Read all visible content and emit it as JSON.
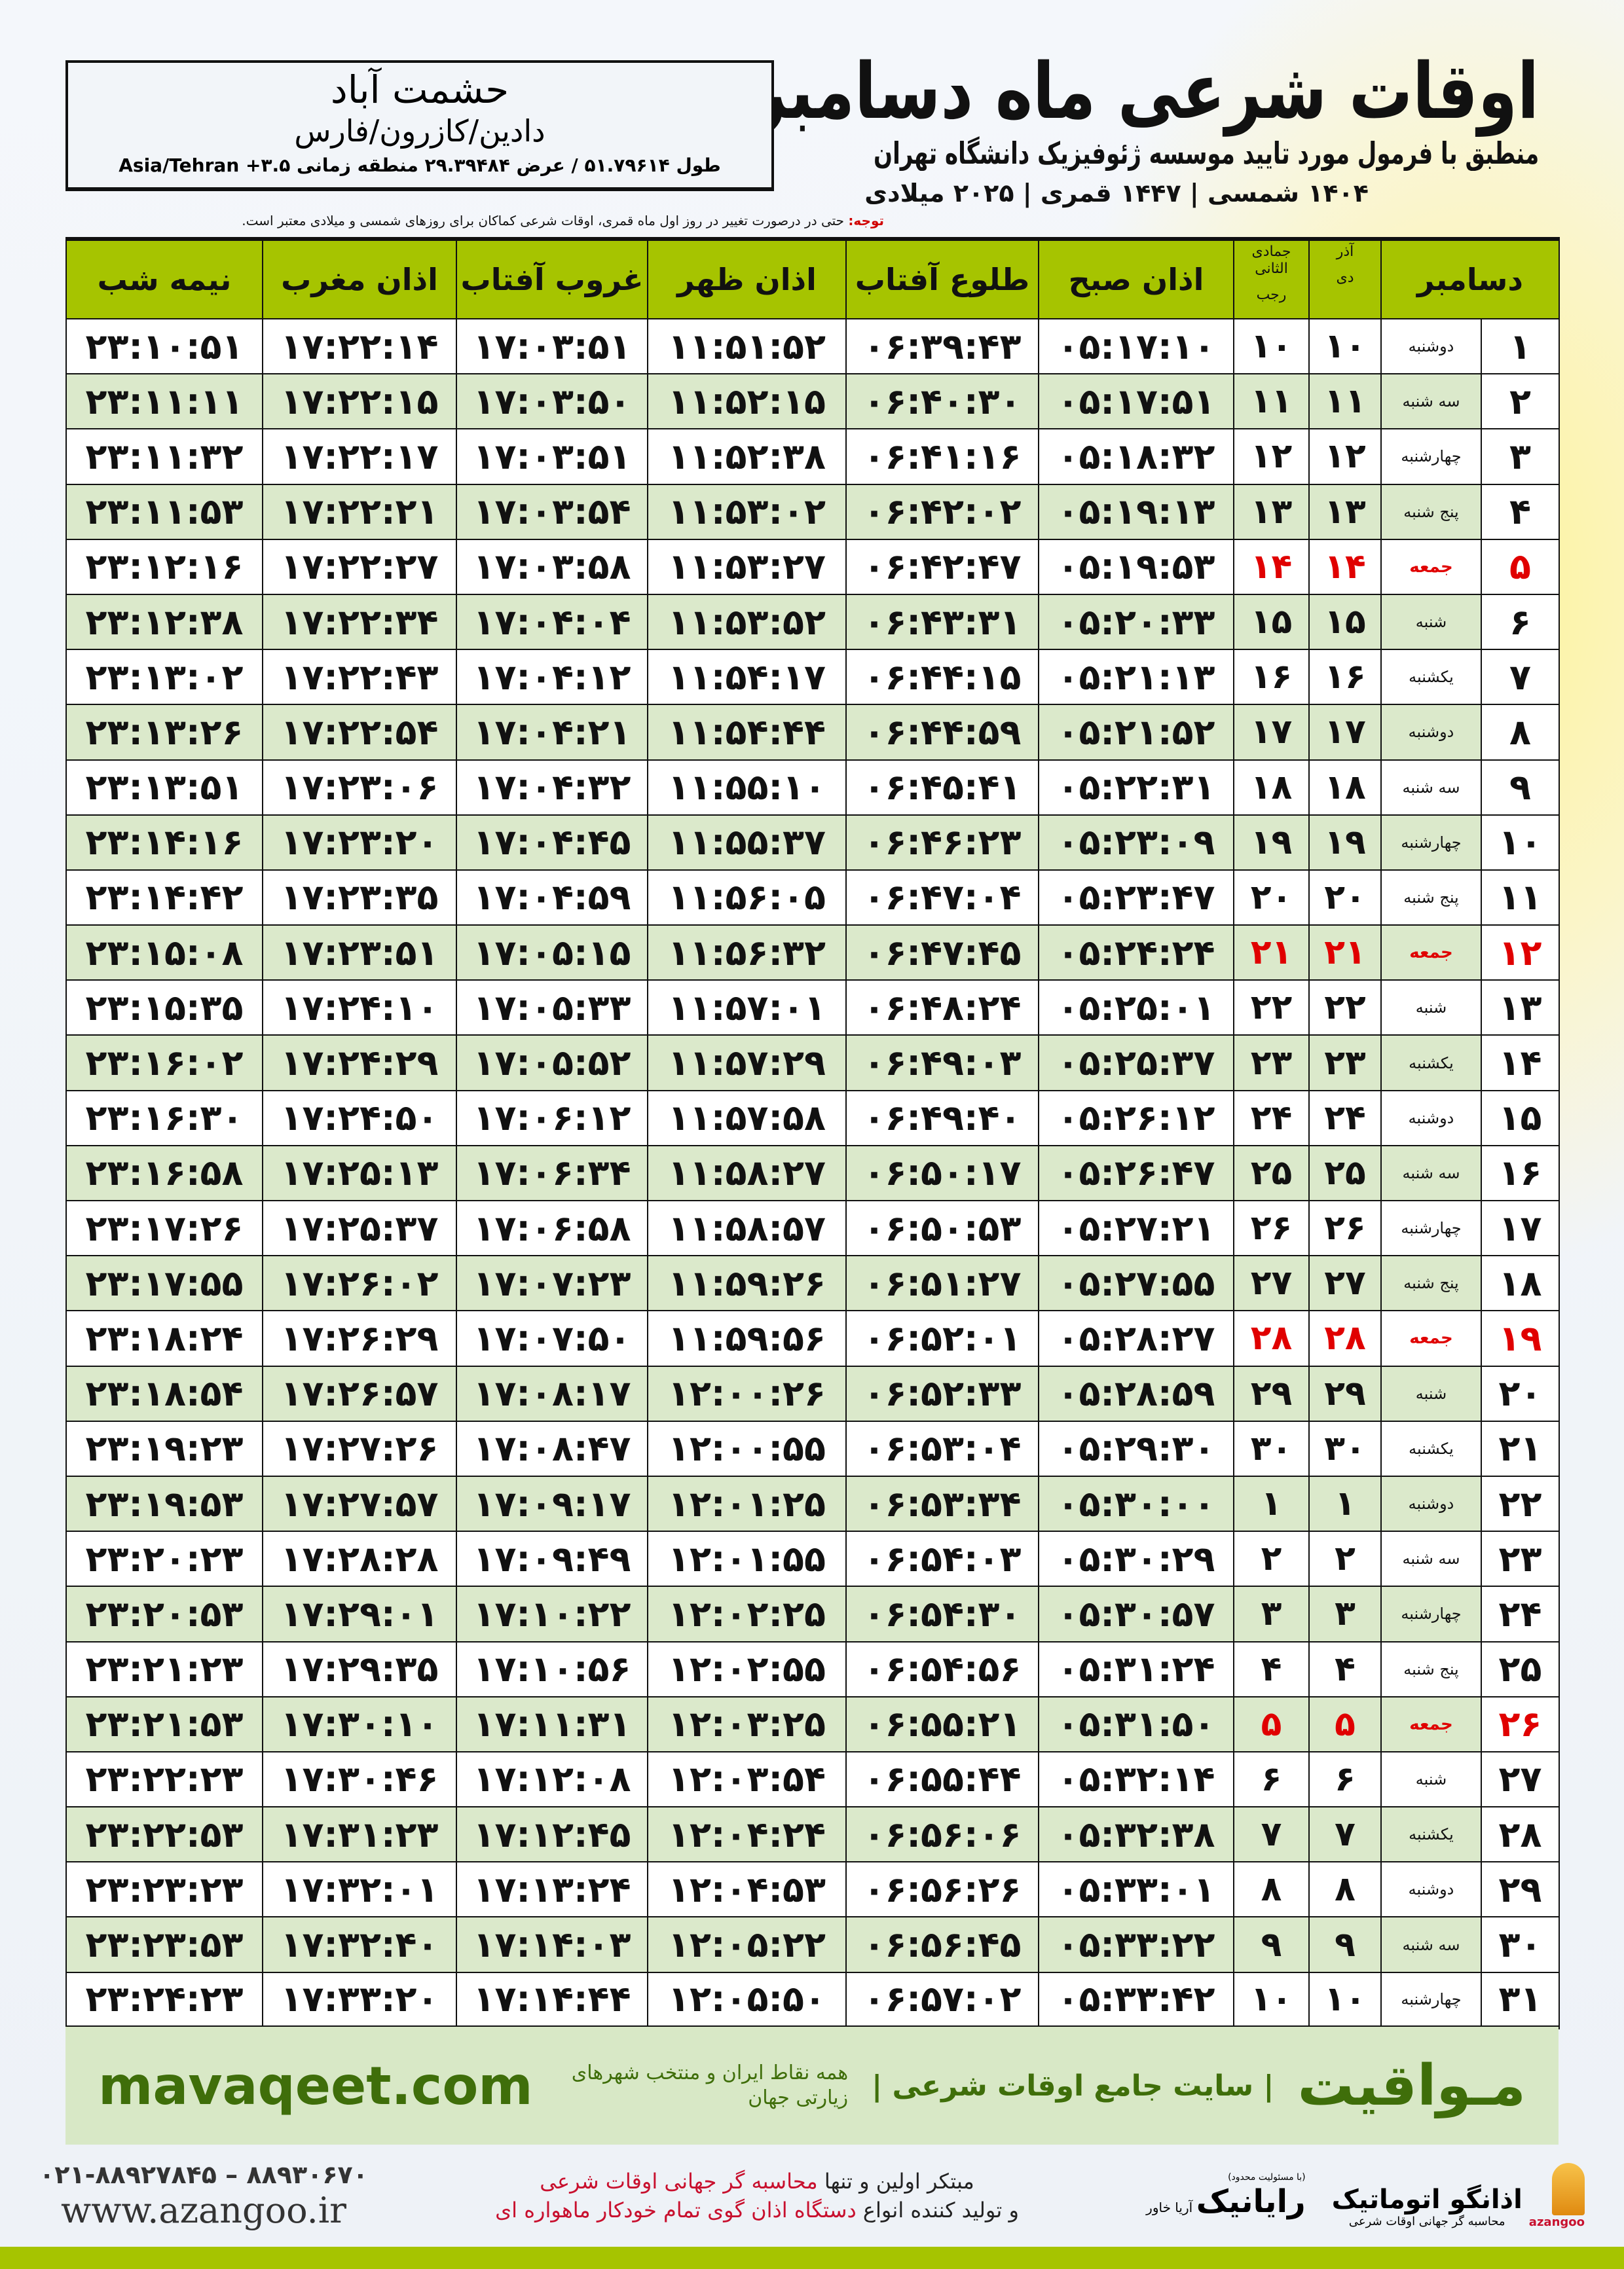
{
  "header": {
    "title": "اوقات شرعی ماه دسامبر",
    "subtitle": "منطبق با فرمول مورد تایید موسسه ژئوفیزیک دانشگاه تهران",
    "dates": "۱۴۰۴ شمسی | ۱۴۴۷ قمری | ۲۰۲۵ میلادی"
  },
  "location": {
    "city": "حشمت آباد",
    "region": "دادین/کازرون/فارس",
    "coords": "طول ۵۱.۷۹۶۱۴ / عرض ۲۹.۳۹۴۸۴ منطقه زمانی ۳.۵+ Asia/Tehran"
  },
  "note": {
    "label": "توجه:",
    "text": " حتی در درصورت تغییر در روز اول ماه قمری، اوقات شرعی کماکان برای روزهای شمسی و میلادی معتبر است."
  },
  "table": {
    "headers": {
      "day": "دسامبر",
      "dey_top": "آذر",
      "dey_bottom": "دی",
      "rajab_top": "جمادی الثانی",
      "rajab_bottom": "رجب",
      "fajr": "اذان صبح",
      "sunrise": "طلوع آفتاب",
      "dhuhr": "اذان ظهر",
      "sunset": "غروب آفتاب",
      "maghrib": "اذان مغرب",
      "midnight": "نیمه شب"
    },
    "rows": [
      [
        "۱",
        "دوشنبه",
        "۱۰",
        "۱۰",
        "۰۵:۱۷:۱۰",
        "۰۶:۳۹:۴۳",
        "۱۱:۵۱:۵۲",
        "۱۷:۰۳:۵۱",
        "۱۷:۲۲:۱۴",
        "۲۳:۱۰:۵۱"
      ],
      [
        "۲",
        "سه شنبه",
        "۱۱",
        "۱۱",
        "۰۵:۱۷:۵۱",
        "۰۶:۴۰:۳۰",
        "۱۱:۵۲:۱۵",
        "۱۷:۰۳:۵۰",
        "۱۷:۲۲:۱۵",
        "۲۳:۱۱:۱۱"
      ],
      [
        "۳",
        "چهارشنبه",
        "۱۲",
        "۱۲",
        "۰۵:۱۸:۳۲",
        "۰۶:۴۱:۱۶",
        "۱۱:۵۲:۳۸",
        "۱۷:۰۳:۵۱",
        "۱۷:۲۲:۱۷",
        "۲۳:۱۱:۳۲"
      ],
      [
        "۴",
        "پنج شنبه",
        "۱۳",
        "۱۳",
        "۰۵:۱۹:۱۳",
        "۰۶:۴۲:۰۲",
        "۱۱:۵۳:۰۲",
        "۱۷:۰۳:۵۴",
        "۱۷:۲۲:۲۱",
        "۲۳:۱۱:۵۳"
      ],
      [
        "۵",
        "جمعه",
        "۱۴",
        "۱۴",
        "۰۵:۱۹:۵۳",
        "۰۶:۴۲:۴۷",
        "۱۱:۵۳:۲۷",
        "۱۷:۰۳:۵۸",
        "۱۷:۲۲:۲۷",
        "۲۳:۱۲:۱۶"
      ],
      [
        "۶",
        "شنبه",
        "۱۵",
        "۱۵",
        "۰۵:۲۰:۳۳",
        "۰۶:۴۳:۳۱",
        "۱۱:۵۳:۵۲",
        "۱۷:۰۴:۰۴",
        "۱۷:۲۲:۳۴",
        "۲۳:۱۲:۳۸"
      ],
      [
        "۷",
        "یکشنبه",
        "۱۶",
        "۱۶",
        "۰۵:۲۱:۱۳",
        "۰۶:۴۴:۱۵",
        "۱۱:۵۴:۱۷",
        "۱۷:۰۴:۱۲",
        "۱۷:۲۲:۴۳",
        "۲۳:۱۳:۰۲"
      ],
      [
        "۸",
        "دوشنبه",
        "۱۷",
        "۱۷",
        "۰۵:۲۱:۵۲",
        "۰۶:۴۴:۵۹",
        "۱۱:۵۴:۴۴",
        "۱۷:۰۴:۲۱",
        "۱۷:۲۲:۵۴",
        "۲۳:۱۳:۲۶"
      ],
      [
        "۹",
        "سه شنبه",
        "۱۸",
        "۱۸",
        "۰۵:۲۲:۳۱",
        "۰۶:۴۵:۴۱",
        "۱۱:۵۵:۱۰",
        "۱۷:۰۴:۳۲",
        "۱۷:۲۳:۰۶",
        "۲۳:۱۳:۵۱"
      ],
      [
        "۱۰",
        "چهارشنبه",
        "۱۹",
        "۱۹",
        "۰۵:۲۳:۰۹",
        "۰۶:۴۶:۲۳",
        "۱۱:۵۵:۳۷",
        "۱۷:۰۴:۴۵",
        "۱۷:۲۳:۲۰",
        "۲۳:۱۴:۱۶"
      ],
      [
        "۱۱",
        "پنج شنبه",
        "۲۰",
        "۲۰",
        "۰۵:۲۳:۴۷",
        "۰۶:۴۷:۰۴",
        "۱۱:۵۶:۰۵",
        "۱۷:۰۴:۵۹",
        "۱۷:۲۳:۳۵",
        "۲۳:۱۴:۴۲"
      ],
      [
        "۱۲",
        "جمعه",
        "۲۱",
        "۲۱",
        "۰۵:۲۴:۲۴",
        "۰۶:۴۷:۴۵",
        "۱۱:۵۶:۳۲",
        "۱۷:۰۵:۱۵",
        "۱۷:۲۳:۵۱",
        "۲۳:۱۵:۰۸"
      ],
      [
        "۱۳",
        "شنبه",
        "۲۲",
        "۲۲",
        "۰۵:۲۵:۰۱",
        "۰۶:۴۸:۲۴",
        "۱۱:۵۷:۰۱",
        "۱۷:۰۵:۳۳",
        "۱۷:۲۴:۱۰",
        "۲۳:۱۵:۳۵"
      ],
      [
        "۱۴",
        "یکشنبه",
        "۲۳",
        "۲۳",
        "۰۵:۲۵:۳۷",
        "۰۶:۴۹:۰۳",
        "۱۱:۵۷:۲۹",
        "۱۷:۰۵:۵۲",
        "۱۷:۲۴:۲۹",
        "۲۳:۱۶:۰۲"
      ],
      [
        "۱۵",
        "دوشنبه",
        "۲۴",
        "۲۴",
        "۰۵:۲۶:۱۲",
        "۰۶:۴۹:۴۰",
        "۱۱:۵۷:۵۸",
        "۱۷:۰۶:۱۲",
        "۱۷:۲۴:۵۰",
        "۲۳:۱۶:۳۰"
      ],
      [
        "۱۶",
        "سه شنبه",
        "۲۵",
        "۲۵",
        "۰۵:۲۶:۴۷",
        "۰۶:۵۰:۱۷",
        "۱۱:۵۸:۲۷",
        "۱۷:۰۶:۳۴",
        "۱۷:۲۵:۱۳",
        "۲۳:۱۶:۵۸"
      ],
      [
        "۱۷",
        "چهارشنبه",
        "۲۶",
        "۲۶",
        "۰۵:۲۷:۲۱",
        "۰۶:۵۰:۵۳",
        "۱۱:۵۸:۵۷",
        "۱۷:۰۶:۵۸",
        "۱۷:۲۵:۳۷",
        "۲۳:۱۷:۲۶"
      ],
      [
        "۱۸",
        "پنج شنبه",
        "۲۷",
        "۲۷",
        "۰۵:۲۷:۵۵",
        "۰۶:۵۱:۲۷",
        "۱۱:۵۹:۲۶",
        "۱۷:۰۷:۲۳",
        "۱۷:۲۶:۰۲",
        "۲۳:۱۷:۵۵"
      ],
      [
        "۱۹",
        "جمعه",
        "۲۸",
        "۲۸",
        "۰۵:۲۸:۲۷",
        "۰۶:۵۲:۰۱",
        "۱۱:۵۹:۵۶",
        "۱۷:۰۷:۵۰",
        "۱۷:۲۶:۲۹",
        "۲۳:۱۸:۲۴"
      ],
      [
        "۲۰",
        "شنبه",
        "۲۹",
        "۲۹",
        "۰۵:۲۸:۵۹",
        "۰۶:۵۲:۳۳",
        "۱۲:۰۰:۲۶",
        "۱۷:۰۸:۱۷",
        "۱۷:۲۶:۵۷",
        "۲۳:۱۸:۵۴"
      ],
      [
        "۲۱",
        "یکشنبه",
        "۳۰",
        "۳۰",
        "۰۵:۲۹:۳۰",
        "۰۶:۵۳:۰۴",
        "۱۲:۰۰:۵۵",
        "۱۷:۰۸:۴۷",
        "۱۷:۲۷:۲۶",
        "۲۳:۱۹:۲۳"
      ],
      [
        "۲۲",
        "دوشنبه",
        "۱",
        "۱",
        "۰۵:۳۰:۰۰",
        "۰۶:۵۳:۳۴",
        "۱۲:۰۱:۲۵",
        "۱۷:۰۹:۱۷",
        "۱۷:۲۷:۵۷",
        "۲۳:۱۹:۵۳"
      ],
      [
        "۲۳",
        "سه شنبه",
        "۲",
        "۲",
        "۰۵:۳۰:۲۹",
        "۰۶:۵۴:۰۳",
        "۱۲:۰۱:۵۵",
        "۱۷:۰۹:۴۹",
        "۱۷:۲۸:۲۸",
        "۲۳:۲۰:۲۳"
      ],
      [
        "۲۴",
        "چهارشنبه",
        "۳",
        "۳",
        "۰۵:۳۰:۵۷",
        "۰۶:۵۴:۳۰",
        "۱۲:۰۲:۲۵",
        "۱۷:۱۰:۲۲",
        "۱۷:۲۹:۰۱",
        "۲۳:۲۰:۵۳"
      ],
      [
        "۲۵",
        "پنج شنبه",
        "۴",
        "۴",
        "۰۵:۳۱:۲۴",
        "۰۶:۵۴:۵۶",
        "۱۲:۰۲:۵۵",
        "۱۷:۱۰:۵۶",
        "۱۷:۲۹:۳۵",
        "۲۳:۲۱:۲۳"
      ],
      [
        "۲۶",
        "جمعه",
        "۵",
        "۵",
        "۰۵:۳۱:۵۰",
        "۰۶:۵۵:۲۱",
        "۱۲:۰۳:۲۵",
        "۱۷:۱۱:۳۱",
        "۱۷:۳۰:۱۰",
        "۲۳:۲۱:۵۳"
      ],
      [
        "۲۷",
        "شنبه",
        "۶",
        "۶",
        "۰۵:۳۲:۱۴",
        "۰۶:۵۵:۴۴",
        "۱۲:۰۳:۵۴",
        "۱۷:۱۲:۰۸",
        "۱۷:۳۰:۴۶",
        "۲۳:۲۲:۲۳"
      ],
      [
        "۲۸",
        "یکشنبه",
        "۷",
        "۷",
        "۰۵:۳۲:۳۸",
        "۰۶:۵۶:۰۶",
        "۱۲:۰۴:۲۴",
        "۱۷:۱۲:۴۵",
        "۱۷:۳۱:۲۳",
        "۲۳:۲۲:۵۳"
      ],
      [
        "۲۹",
        "دوشنبه",
        "۸",
        "۸",
        "۰۵:۳۳:۰۱",
        "۰۶:۵۶:۲۶",
        "۱۲:۰۴:۵۳",
        "۱۷:۱۳:۲۴",
        "۱۷:۳۲:۰۱",
        "۲۳:۲۳:۲۳"
      ],
      [
        "۳۰",
        "سه شنبه",
        "۹",
        "۹",
        "۰۵:۳۳:۲۲",
        "۰۶:۵۶:۴۵",
        "۱۲:۰۵:۲۲",
        "۱۷:۱۴:۰۳",
        "۱۷:۳۲:۴۰",
        "۲۳:۲۳:۵۳"
      ],
      [
        "۳۱",
        "چهارشنبه",
        "۱۰",
        "۱۰",
        "۰۵:۳۳:۴۲",
        "۰۶:۵۷:۰۲",
        "۱۲:۰۵:۵۰",
        "۱۷:۱۴:۴۴",
        "۱۷:۳۳:۲۰",
        "۲۳:۲۴:۲۳"
      ]
    ],
    "friday_label": "جمعه"
  },
  "banner": {
    "logo": "مـواقیت",
    "tagline": "| سایت جامع اوقات شرعی |",
    "sub": "همه نقاط ایران و منتخب شهرهای زیارتی جهان",
    "url": "mavaqeet.com"
  },
  "contact": {
    "phone": "۰۲۱-۸۸۹۲۷۸۴۵ – ۸۸۹۳۰۶۷۰",
    "web": "www.azangoo.ir",
    "promo1a": "مبتکر اولین و تنها ",
    "promo1b": "محاسبه گر جهانی اوقات شرعی",
    "promo2a": "و تولید کننده انواع ",
    "promo2b": "دستگاه اذان گوی تمام خودکار ماهواره ای",
    "rayanik": "رایانیک",
    "rayanik_small": "آریا خاور",
    "rayanik_note": "(با مسئولیت محدود)",
    "azangoo": "اذانگو اتوماتیک",
    "azangoo_sub": "محاسبه گر جهانی اوقات شرعی",
    "azangoo_en": "azangoo"
  },
  "colors": {
    "header_green": "#a6c400",
    "friday_red": "#e00000",
    "banner_green": "#3f6e0a"
  }
}
